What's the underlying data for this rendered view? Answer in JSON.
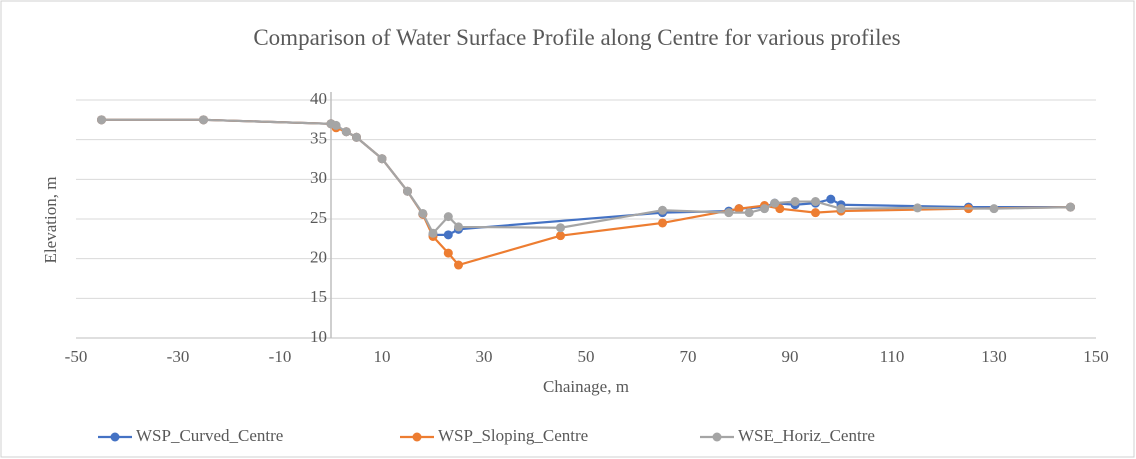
{
  "chart_data": {
    "type": "line",
    "title": "Comparison of Water Surface Profile along Centre for various profiles",
    "x_label": "Chainage, m",
    "y_label": "Elevation, m",
    "xlim": [
      -50,
      150
    ],
    "xticks": [
      -50,
      -30,
      -10,
      10,
      30,
      50,
      70,
      90,
      110,
      130,
      150
    ],
    "ylim": [
      10,
      40
    ],
    "yticks": [
      10,
      15,
      20,
      25,
      30,
      35,
      40
    ],
    "grid": true,
    "legend": "bottom",
    "series": [
      {
        "name": "WSP_Curved_Centre",
        "color": "#4472c4",
        "x": [
          -45,
          -25,
          0,
          1,
          3,
          5,
          10,
          15,
          18,
          20,
          23,
          25,
          65,
          78,
          80,
          85,
          87,
          91,
          95,
          98,
          100,
          125,
          145
        ],
        "values": [
          37.5,
          37.5,
          37,
          36.7,
          36,
          35.3,
          32.6,
          28.5,
          25.6,
          23,
          23,
          23.7,
          25.8,
          26,
          26.3,
          26.5,
          27,
          26.8,
          27,
          27.5,
          26.8,
          26.5,
          26.5
        ]
      },
      {
        "name": "WSP_Sloping_Centre",
        "color": "#ed7d31",
        "x": [
          -45,
          -25,
          0,
          1,
          3,
          5,
          10,
          15,
          18,
          20,
          23,
          25,
          45,
          65,
          80,
          85,
          88,
          95,
          100,
          125,
          145
        ],
        "values": [
          37.5,
          37.5,
          37,
          36.5,
          36,
          35.3,
          32.6,
          28.5,
          25.6,
          22.8,
          20.7,
          19.2,
          22.9,
          24.5,
          26.3,
          26.7,
          26.3,
          25.8,
          26,
          26.3,
          26.5
        ]
      },
      {
        "name": "WSE_Horiz_Centre",
        "color": "#a5a5a5",
        "x": [
          -45,
          -25,
          0,
          1,
          3,
          5,
          10,
          15,
          18,
          20,
          23,
          25,
          45,
          65,
          78,
          82,
          85,
          87,
          91,
          95,
          100,
          115,
          130,
          145
        ],
        "values": [
          37.5,
          37.5,
          37,
          36.8,
          36,
          35.3,
          32.6,
          28.5,
          25.7,
          23.2,
          25.3,
          24,
          23.9,
          26.1,
          25.8,
          25.8,
          26.3,
          27,
          27.2,
          27.2,
          26.3,
          26.4,
          26.3,
          26.5
        ]
      }
    ]
  }
}
